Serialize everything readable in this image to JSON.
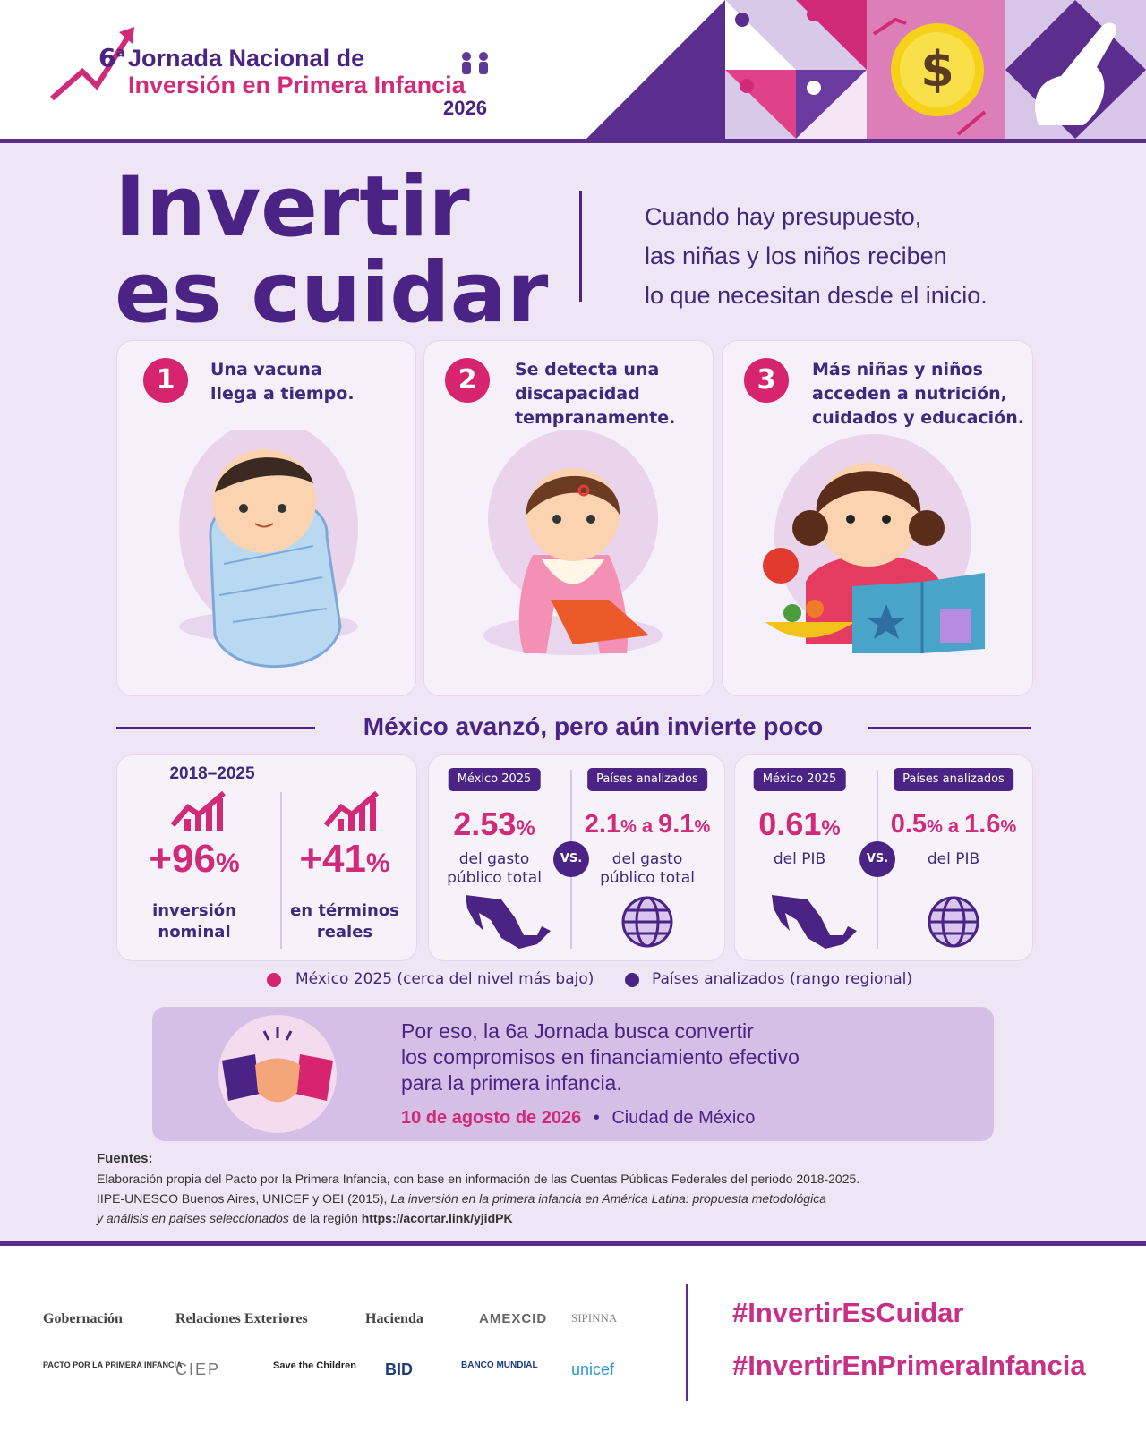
{
  "header": {
    "number": "6",
    "superscript": "a",
    "line1": "Jornada Nacional de",
    "line2": "Inversión en Primera Infancia",
    "year": "2026"
  },
  "hero": {
    "title_line1": "Invertir",
    "title_line2": "es cuidar",
    "tagline": [
      "Cuando hay presupuesto,",
      "las niñas y los niños reciben",
      "lo que necesitan desde el inicio."
    ]
  },
  "cards": [
    {
      "number": "1",
      "lines": [
        "Una vacuna",
        "llega a tiempo."
      ]
    },
    {
      "number": "2",
      "lines": [
        "Se detecta una",
        "discapacidad",
        "tempranamente."
      ]
    },
    {
      "number": "3",
      "lines": [
        "Más niñas y niños",
        "acceden a nutrición,",
        "cuidados y educación."
      ]
    }
  ],
  "section_title": "México avanzó, pero aún invierte poco",
  "growth": {
    "period": "2018–2025",
    "items": [
      {
        "value": "+96",
        "unit": "%",
        "label": [
          "inversión",
          "nominal"
        ]
      },
      {
        "value": "+41",
        "unit": "%",
        "label": [
          "en términos",
          "reales"
        ]
      }
    ]
  },
  "comparisons": [
    {
      "mexico": {
        "tag": "México 2025",
        "value": "2.53",
        "unit": "%",
        "label": [
          "del gasto",
          "público total"
        ]
      },
      "vs": "VS.",
      "countries": {
        "tag": "Países analizados",
        "from": "2.1",
        "from_unit": "%",
        "connector": "a",
        "to": "9.1",
        "to_unit": "%",
        "label": [
          "del gasto",
          "público total"
        ]
      }
    },
    {
      "mexico": {
        "tag": "México 2025",
        "value": "0.61",
        "unit": "%",
        "label": [
          "del PIB"
        ]
      },
      "vs": "VS.",
      "countries": {
        "tag": "Países analizados",
        "from": "0.5",
        "from_unit": "%",
        "connector": "a",
        "to": "1.6",
        "to_unit": "%",
        "label": [
          "del PIB"
        ]
      }
    }
  ],
  "legend": [
    "México 2025 (cerca del nivel más bajo)",
    "Países analizados (rango regional)"
  ],
  "callout": {
    "lines": [
      "Por eso, la 6a Jornada busca convertir",
      "los compromisos en financiamiento efectivo",
      "para la primera infancia."
    ],
    "date": "10 de agosto de 2026",
    "separator": "•",
    "place": "Ciudad de México"
  },
  "sources": {
    "heading": "Fuentes:",
    "line1": "Elaboración propia del Pacto por la Primera Infancia, con base en información de las Cuentas Públicas Federales del periodo 2018-2025.",
    "line2_plain": "IIPE-UNESCO Buenos Aires, UNICEF y OEI (2015), ",
    "line2_italic": "La inversión en la primera infancia en América Latina: propuesta metodológica",
    "line3_italic": "y análisis en países seleccionados",
    "line3_plain": " de la región ",
    "link": "https://acortar.link/yjidPK"
  },
  "logos": [
    "Gobernación",
    "Relaciones Exteriores",
    "Hacienda",
    "AMEXCID",
    "SIPINNA",
    "PACTO POR LA PRIMERA INFANCIA",
    "CIEP",
    "Save the Children",
    "BID",
    "BANCO MUNDIAL",
    "unicef"
  ],
  "hashtags": [
    "#InvertirEsCuidar",
    "#InvertirEnPrimeraInfancia"
  ]
}
